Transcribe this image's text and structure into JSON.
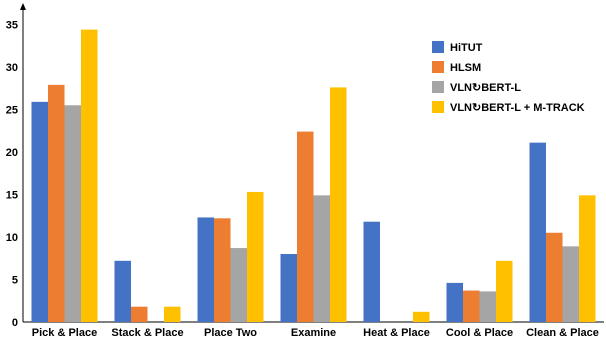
{
  "chart_data": {
    "type": "bar",
    "title": "",
    "xlabel": "",
    "ylabel": "",
    "ylim": [
      0,
      36
    ],
    "yticks": [
      0,
      5,
      10,
      15,
      20,
      25,
      30,
      35
    ],
    "grid": false,
    "legend_position": "top-right",
    "categories": [
      "Pick & Place",
      "Stack & Place",
      "Place Two",
      "Examine",
      "Heat & Place",
      "Cool & Place",
      "Clean & Place"
    ],
    "series": [
      {
        "name": "HiTUT",
        "color": "#4472C4",
        "values": [
          25.9,
          7.2,
          12.3,
          8.0,
          11.8,
          4.6,
          21.1
        ]
      },
      {
        "name": "HLSM",
        "color": "#ED7D31",
        "values": [
          27.9,
          1.8,
          12.2,
          22.4,
          0,
          3.7,
          10.5
        ]
      },
      {
        "name": "VLN↻BERT-L",
        "color": "#A5A5A5",
        "values": [
          25.5,
          0,
          8.7,
          14.9,
          0,
          3.6,
          8.9
        ]
      },
      {
        "name": "VLN↻BERT-L + M-TRACK",
        "color": "#FFC000",
        "values": [
          34.4,
          1.8,
          15.3,
          27.6,
          1.2,
          7.2,
          14.9
        ]
      }
    ]
  }
}
